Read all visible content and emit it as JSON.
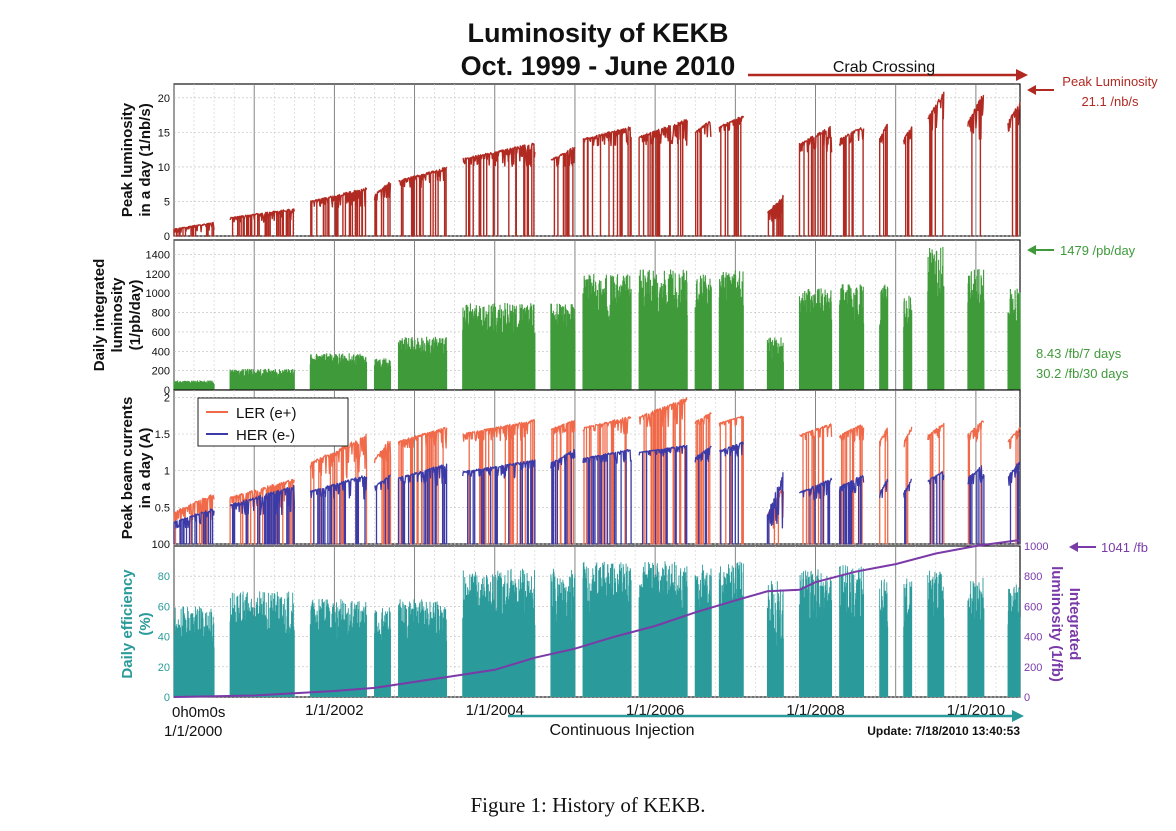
{
  "figure": {
    "title_line1": "Luminosity of KEKB",
    "title_line2": "Oct. 1999 - June 2010",
    "caption": "Figure 1: History of KEKB.",
    "crab_label": "Crab Crossing",
    "continuous_label": "Continuous Injection",
    "update_label": "Update: 7/18/2010 13:40:53",
    "x_origin_label": "0h0m0s",
    "x_ticks": [
      "1/1/2000",
      "1/1/2002",
      "1/1/2004",
      "1/1/2006",
      "1/1/2008",
      "1/1/2010"
    ],
    "x_range_years": [
      2000.0,
      2010.55
    ],
    "colors": {
      "peak": "#b02a22",
      "daily": "#3f9a3a",
      "ler": "#f06a4a",
      "her": "#3b3aa6",
      "eff": "#2a9a9a",
      "integrated": "#7a3aa8",
      "crab_arrow": "#b02a22",
      "continuous_arrow": "#2a9a9a"
    }
  },
  "chart_data": [
    {
      "type": "line",
      "ylabel": "Peak luminosity in a day (1/nb/s)",
      "ylim": [
        0,
        22
      ],
      "yticks": [
        0,
        5,
        10,
        15,
        20
      ],
      "annotation": {
        "text1": "Peak Luminosity",
        "text2": "21.1 /nb/s"
      },
      "segments": [
        {
          "start": 2000.0,
          "end": 2000.5,
          "low": 0.5,
          "high": 2
        },
        {
          "start": 2000.7,
          "end": 2001.5,
          "low": 2,
          "high": 4
        },
        {
          "start": 2001.7,
          "end": 2002.4,
          "low": 4,
          "high": 7
        },
        {
          "start": 2002.5,
          "end": 2002.7,
          "low": 5,
          "high": 8
        },
        {
          "start": 2002.8,
          "end": 2003.4,
          "low": 7,
          "high": 10
        },
        {
          "start": 2003.6,
          "end": 2004.5,
          "low": 10,
          "high": 13.5
        },
        {
          "start": 2004.7,
          "end": 2005.0,
          "low": 10,
          "high": 13
        },
        {
          "start": 2005.1,
          "end": 2005.7,
          "low": 13,
          "high": 16
        },
        {
          "start": 2005.8,
          "end": 2006.4,
          "low": 13,
          "high": 17
        },
        {
          "start": 2006.5,
          "end": 2006.7,
          "low": 14,
          "high": 17
        },
        {
          "start": 2006.8,
          "end": 2007.1,
          "low": 15,
          "high": 17.5
        },
        {
          "start": 2007.4,
          "end": 2007.6,
          "low": 2,
          "high": 6
        },
        {
          "start": 2007.8,
          "end": 2008.2,
          "low": 12,
          "high": 16
        },
        {
          "start": 2008.3,
          "end": 2008.6,
          "low": 13,
          "high": 16
        },
        {
          "start": 2008.8,
          "end": 2008.9,
          "low": 13,
          "high": 16.5
        },
        {
          "start": 2009.1,
          "end": 2009.2,
          "low": 13,
          "high": 16
        },
        {
          "start": 2009.4,
          "end": 2009.6,
          "low": 15,
          "high": 21.1
        },
        {
          "start": 2009.9,
          "end": 2010.1,
          "low": 14,
          "high": 21.1
        },
        {
          "start": 2010.4,
          "end": 2010.55,
          "low": 15,
          "high": 19.5
        }
      ]
    },
    {
      "type": "bar",
      "ylabel": "Daily integrated luminosity (1/pb/day)",
      "ylim": [
        0,
        1550
      ],
      "yticks": [
        0,
        200,
        400,
        600,
        800,
        1000,
        1200,
        1400
      ],
      "annotation": {
        "text1": "1479 /pb/day",
        "text2": "8.43 /fb/7 days",
        "text3": "30.2 /fb/30 days"
      },
      "segments": [
        {
          "start": 2000.0,
          "end": 2000.5,
          "low": 20,
          "high": 100
        },
        {
          "start": 2000.7,
          "end": 2001.5,
          "low": 60,
          "high": 220
        },
        {
          "start": 2001.7,
          "end": 2002.4,
          "low": 100,
          "high": 380
        },
        {
          "start": 2002.5,
          "end": 2002.7,
          "low": 100,
          "high": 330
        },
        {
          "start": 2002.8,
          "end": 2003.4,
          "low": 150,
          "high": 550
        },
        {
          "start": 2003.6,
          "end": 2004.5,
          "low": 200,
          "high": 900
        },
        {
          "start": 2004.7,
          "end": 2005.0,
          "low": 300,
          "high": 900
        },
        {
          "start": 2005.1,
          "end": 2005.7,
          "low": 300,
          "high": 1200
        },
        {
          "start": 2005.8,
          "end": 2006.4,
          "low": 300,
          "high": 1250
        },
        {
          "start": 2006.5,
          "end": 2006.7,
          "low": 400,
          "high": 1200
        },
        {
          "start": 2006.8,
          "end": 2007.1,
          "low": 300,
          "high": 1250
        },
        {
          "start": 2007.4,
          "end": 2007.6,
          "low": 50,
          "high": 550
        },
        {
          "start": 2007.8,
          "end": 2008.2,
          "low": 300,
          "high": 1050
        },
        {
          "start": 2008.3,
          "end": 2008.6,
          "low": 300,
          "high": 1100
        },
        {
          "start": 2008.8,
          "end": 2008.9,
          "low": 300,
          "high": 1100
        },
        {
          "start": 2009.1,
          "end": 2009.2,
          "low": 300,
          "high": 1000
        },
        {
          "start": 2009.4,
          "end": 2009.6,
          "low": 400,
          "high": 1479
        },
        {
          "start": 2009.9,
          "end": 2010.1,
          "low": 400,
          "high": 1250
        },
        {
          "start": 2010.4,
          "end": 2010.55,
          "low": 300,
          "high": 1050
        }
      ]
    },
    {
      "type": "line",
      "ylabel": "Peak beam currents in a day (A)",
      "ylim": [
        0,
        2.1
      ],
      "yticks": [
        0,
        0.5,
        1,
        1.5,
        2
      ],
      "y_tick_labels": [
        "100",
        "0.5",
        "1",
        "1.5",
        "2"
      ],
      "legend": {
        "placement": "top-left"
      },
      "series": [
        {
          "name": "LER (e+)",
          "segments": [
            {
              "start": 2000.0,
              "end": 2000.5,
              "low": 0.3,
              "high": 0.7
            },
            {
              "start": 2000.7,
              "end": 2001.5,
              "low": 0.5,
              "high": 0.9
            },
            {
              "start": 2001.7,
              "end": 2002.4,
              "low": 0.9,
              "high": 1.5
            },
            {
              "start": 2002.5,
              "end": 2002.7,
              "low": 1.0,
              "high": 1.45
            },
            {
              "start": 2002.8,
              "end": 2003.4,
              "low": 1.3,
              "high": 1.6
            },
            {
              "start": 2003.6,
              "end": 2004.5,
              "low": 1.4,
              "high": 1.7
            },
            {
              "start": 2004.7,
              "end": 2005.0,
              "low": 1.5,
              "high": 1.7
            },
            {
              "start": 2005.1,
              "end": 2005.7,
              "low": 1.5,
              "high": 1.75
            },
            {
              "start": 2005.8,
              "end": 2006.4,
              "low": 1.6,
              "high": 2.0
            },
            {
              "start": 2006.5,
              "end": 2006.7,
              "low": 1.6,
              "high": 1.8
            },
            {
              "start": 2006.8,
              "end": 2007.1,
              "low": 1.6,
              "high": 1.75
            },
            {
              "start": 2007.4,
              "end": 2007.6,
              "low": 0.2,
              "high": 0.8
            },
            {
              "start": 2007.8,
              "end": 2008.2,
              "low": 1.4,
              "high": 1.65
            },
            {
              "start": 2008.3,
              "end": 2008.6,
              "low": 1.4,
              "high": 1.65
            },
            {
              "start": 2008.8,
              "end": 2008.9,
              "low": 1.3,
              "high": 1.6
            },
            {
              "start": 2009.1,
              "end": 2009.2,
              "low": 1.3,
              "high": 1.6
            },
            {
              "start": 2009.4,
              "end": 2009.6,
              "low": 1.4,
              "high": 1.65
            },
            {
              "start": 2009.9,
              "end": 2010.1,
              "low": 1.4,
              "high": 1.7
            },
            {
              "start": 2010.4,
              "end": 2010.55,
              "low": 1.3,
              "high": 1.6
            }
          ]
        },
        {
          "name": "HER (e-)",
          "segments": [
            {
              "start": 2000.0,
              "end": 2000.5,
              "low": 0.2,
              "high": 0.5
            },
            {
              "start": 2000.7,
              "end": 2001.5,
              "low": 0.4,
              "high": 0.8
            },
            {
              "start": 2001.7,
              "end": 2002.4,
              "low": 0.6,
              "high": 0.95
            },
            {
              "start": 2002.5,
              "end": 2002.7,
              "low": 0.7,
              "high": 0.95
            },
            {
              "start": 2002.8,
              "end": 2003.4,
              "low": 0.8,
              "high": 1.1
            },
            {
              "start": 2003.6,
              "end": 2004.5,
              "low": 0.9,
              "high": 1.15
            },
            {
              "start": 2004.7,
              "end": 2005.0,
              "low": 1.0,
              "high": 1.3
            },
            {
              "start": 2005.1,
              "end": 2005.7,
              "low": 1.1,
              "high": 1.3
            },
            {
              "start": 2005.8,
              "end": 2006.4,
              "low": 1.2,
              "high": 1.35
            },
            {
              "start": 2006.5,
              "end": 2006.7,
              "low": 1.1,
              "high": 1.35
            },
            {
              "start": 2006.8,
              "end": 2007.1,
              "low": 1.2,
              "high": 1.4
            },
            {
              "start": 2007.4,
              "end": 2007.6,
              "low": 0.1,
              "high": 1.0
            },
            {
              "start": 2007.8,
              "end": 2008.2,
              "low": 0.6,
              "high": 0.9
            },
            {
              "start": 2008.3,
              "end": 2008.6,
              "low": 0.7,
              "high": 0.95
            },
            {
              "start": 2008.8,
              "end": 2008.9,
              "low": 0.6,
              "high": 0.9
            },
            {
              "start": 2009.1,
              "end": 2009.2,
              "low": 0.6,
              "high": 0.9
            },
            {
              "start": 2009.4,
              "end": 2009.6,
              "low": 0.8,
              "high": 1.0
            },
            {
              "start": 2009.9,
              "end": 2010.1,
              "low": 0.8,
              "high": 1.1
            },
            {
              "start": 2010.4,
              "end": 2010.55,
              "low": 0.8,
              "high": 1.15
            }
          ]
        }
      ]
    },
    {
      "type": "bar",
      "ylabel": "Daily efficiency (%)",
      "ylim": [
        0,
        100
      ],
      "yticks": [
        0,
        20,
        40,
        60,
        80
      ],
      "y_tick_labels": [
        "0",
        "20",
        "40",
        "60",
        "80"
      ],
      "segments": [
        {
          "start": 2000.0,
          "end": 2000.5,
          "low": 20,
          "high": 60
        },
        {
          "start": 2000.7,
          "end": 2001.5,
          "low": 25,
          "high": 70
        },
        {
          "start": 2001.7,
          "end": 2002.4,
          "low": 25,
          "high": 65
        },
        {
          "start": 2002.5,
          "end": 2002.7,
          "low": 20,
          "high": 60
        },
        {
          "start": 2002.8,
          "end": 2003.4,
          "low": 25,
          "high": 65
        },
        {
          "start": 2003.6,
          "end": 2004.5,
          "low": 30,
          "high": 85
        },
        {
          "start": 2004.7,
          "end": 2005.0,
          "low": 30,
          "high": 85
        },
        {
          "start": 2005.1,
          "end": 2005.7,
          "low": 40,
          "high": 90
        },
        {
          "start": 2005.8,
          "end": 2006.4,
          "low": 40,
          "high": 90
        },
        {
          "start": 2006.5,
          "end": 2006.7,
          "low": 40,
          "high": 88
        },
        {
          "start": 2006.8,
          "end": 2007.1,
          "low": 40,
          "high": 90
        },
        {
          "start": 2007.4,
          "end": 2007.6,
          "low": 10,
          "high": 80
        },
        {
          "start": 2007.8,
          "end": 2008.2,
          "low": 30,
          "high": 85
        },
        {
          "start": 2008.3,
          "end": 2008.6,
          "low": 30,
          "high": 88
        },
        {
          "start": 2008.8,
          "end": 2008.9,
          "low": 30,
          "high": 80
        },
        {
          "start": 2009.1,
          "end": 2009.2,
          "low": 30,
          "high": 80
        },
        {
          "start": 2009.4,
          "end": 2009.6,
          "low": 30,
          "high": 85
        },
        {
          "start": 2009.9,
          "end": 2010.1,
          "low": 30,
          "high": 80
        },
        {
          "start": 2010.4,
          "end": 2010.55,
          "low": 30,
          "high": 75
        }
      ],
      "integrated": {
        "ylabel": "Integrated luminosity (1/fb)",
        "ylim": [
          0,
          1000
        ],
        "yticks": [
          0,
          200,
          400,
          600,
          800,
          1000
        ],
        "annotation": "1041 /fb",
        "points": [
          [
            2000.0,
            0
          ],
          [
            2001.0,
            10
          ],
          [
            2002.0,
            40
          ],
          [
            2002.5,
            60
          ],
          [
            2003.0,
            100
          ],
          [
            2003.5,
            140
          ],
          [
            2004.0,
            180
          ],
          [
            2004.5,
            260
          ],
          [
            2005.0,
            320
          ],
          [
            2005.5,
            400
          ],
          [
            2006.0,
            470
          ],
          [
            2006.5,
            560
          ],
          [
            2007.0,
            640
          ],
          [
            2007.4,
            700
          ],
          [
            2007.8,
            710
          ],
          [
            2008.0,
            760
          ],
          [
            2008.5,
            830
          ],
          [
            2009.0,
            880
          ],
          [
            2009.5,
            950
          ],
          [
            2010.0,
            1000
          ],
          [
            2010.55,
            1041
          ]
        ]
      }
    }
  ]
}
